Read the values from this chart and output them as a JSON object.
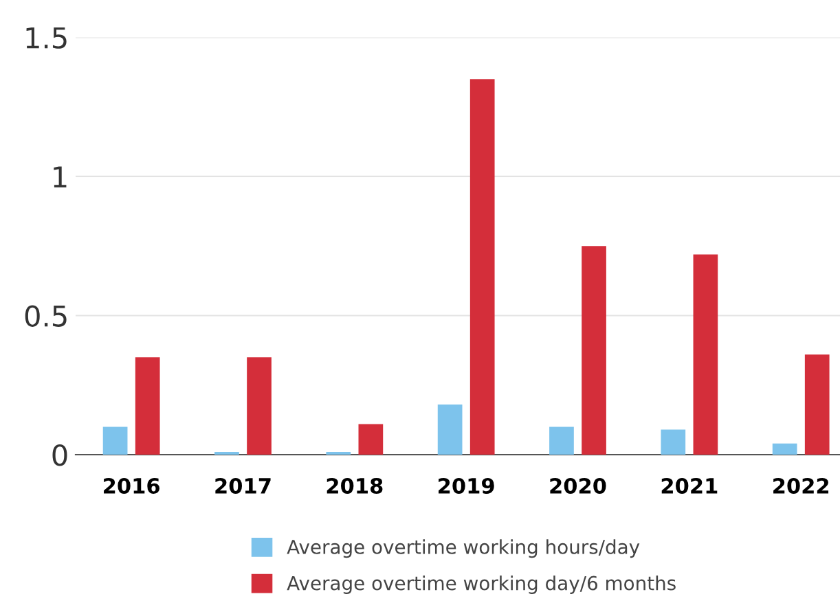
{
  "chart_data": {
    "type": "bar",
    "categories": [
      "2016",
      "2017",
      "2018",
      "2019",
      "2020",
      "2021",
      "2022"
    ],
    "series": [
      {
        "name": "Average overtime working hours/day",
        "color": "#7dc3ec",
        "values": [
          0.1,
          0.01,
          0.01,
          0.18,
          0.1,
          0.09,
          0.04
        ]
      },
      {
        "name": "Average overtime working day/6 months",
        "color": "#d42e3a",
        "values": [
          0.35,
          0.35,
          0.11,
          1.35,
          0.75,
          0.72,
          0.36
        ]
      }
    ],
    "ylim": [
      0,
      1.5
    ],
    "yticks": [
      0,
      0.5,
      1,
      1.5
    ],
    "grid": "y",
    "legend": "bottom"
  }
}
